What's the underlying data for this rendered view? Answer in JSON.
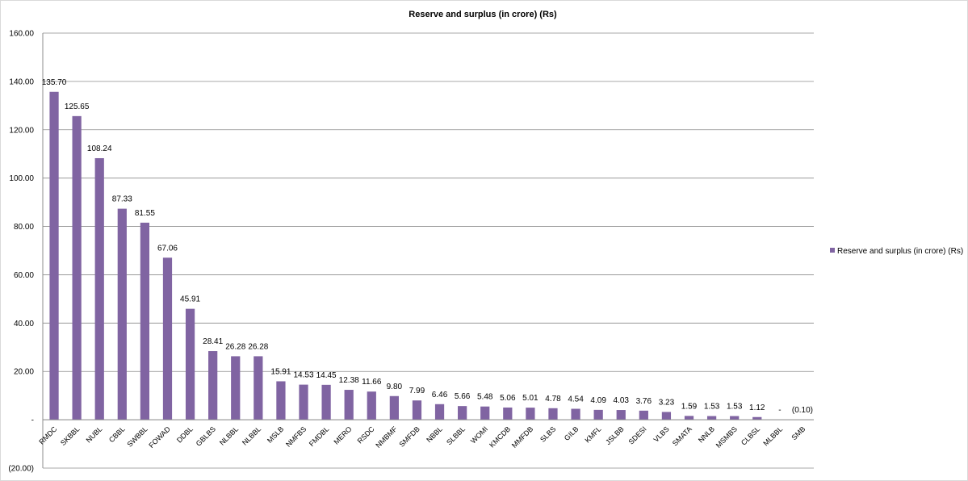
{
  "chart_data": {
    "type": "bar",
    "title": "Reserve and surplus (in crore) (Rs)",
    "xlabel": "",
    "ylabel": "",
    "ylim": [
      -20,
      160
    ],
    "yticks": [
      -20,
      0,
      20,
      40,
      60,
      80,
      100,
      120,
      140,
      160
    ],
    "ytick_labels": [
      "(20.00)",
      "-",
      "20.00",
      "40.00",
      "60.00",
      "80.00",
      "100.00",
      "120.00",
      "140.00",
      "160.00"
    ],
    "grid": true,
    "legend_position": "right",
    "bar_color": "#8064A2",
    "categories": [
      "RMDC",
      "SKBBL",
      "NUBL",
      "CBBL",
      "SWBBL",
      "FOWAD",
      "DDBL",
      "GBLBS",
      "NLBBL",
      "NLBBL",
      "MSLB",
      "NMFBS",
      "FMDBL",
      "MERO",
      "RSDC",
      "NMBMF",
      "SMFDB",
      "NBBL",
      "SLBBL",
      "WOMI",
      "KMCDB",
      "MMFDB",
      "SLBS",
      "GILB",
      "KMFL",
      "JSLBB",
      "SDESI",
      "VLBS",
      "SMATA",
      "NNLB",
      "MSMBS",
      "CLBSL",
      "MLBBL",
      "SMB"
    ],
    "series": [
      {
        "name": "Reserve and surplus (in crore) (Rs)",
        "values": [
          135.7,
          125.65,
          108.24,
          87.33,
          81.55,
          67.06,
          45.91,
          28.41,
          26.28,
          26.28,
          15.91,
          14.53,
          14.45,
          12.38,
          11.66,
          9.8,
          7.99,
          6.46,
          5.66,
          5.48,
          5.06,
          5.01,
          4.78,
          4.54,
          4.09,
          4.03,
          3.76,
          3.23,
          1.59,
          1.53,
          1.53,
          1.12,
          0,
          -0.1
        ],
        "labels": [
          "135.70",
          "125.65",
          "108.24",
          "87.33",
          "81.55",
          "67.06",
          "45.91",
          "28.41",
          "26.28",
          "26.28",
          "15.91",
          "14.53",
          "14.45",
          "12.38",
          "11.66",
          "9.80",
          "7.99",
          "6.46",
          "5.66",
          "5.48",
          "5.06",
          "5.01",
          "4.78",
          "4.54",
          "4.09",
          "4.03",
          "3.76",
          "3.23",
          "1.59",
          "1.53",
          "1.53",
          "1.12",
          "-",
          "(0.10)"
        ]
      }
    ]
  }
}
